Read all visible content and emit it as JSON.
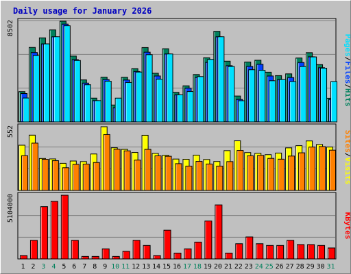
{
  "page": {
    "title": "Daily usage for January 2026"
  },
  "colors": {
    "hits": "#00805c",
    "files": "#0040ff",
    "pages": "#00e0ff",
    "visits": "#ffff00",
    "sites": "#ff8000",
    "kbytes": "#ff0000",
    "weekend_day": "#00805c",
    "weekday": "#000000"
  },
  "chart_data": [
    {
      "type": "bar",
      "name": "hits-files-pages",
      "y_max_label": "8502",
      "ylim": [
        0,
        8502
      ],
      "legend": [
        {
          "text": "Hits",
          "color_key": "hits"
        },
        {
          "text": "Files",
          "color_key": "files"
        },
        {
          "text": "Pages",
          "color_key": "pages"
        }
      ],
      "categories": [
        "1",
        "2",
        "3",
        "4",
        "5",
        "6",
        "7",
        "8",
        "9",
        "10",
        "11",
        "12",
        "13",
        "14",
        "15",
        "16",
        "17",
        "18",
        "19",
        "20",
        "21",
        "22",
        "23",
        "24",
        "25",
        "26",
        "27",
        "28",
        "29",
        "30",
        "31"
      ],
      "series": [
        {
          "name": "Hits",
          "values": [
            2560,
            6290,
            7100,
            7770,
            8502,
            5560,
            3550,
            2010,
            3780,
            1430,
            3770,
            4500,
            6280,
            4110,
            6180,
            2500,
            3050,
            4000,
            5420,
            7650,
            5130,
            2190,
            5060,
            5210,
            4200,
            3910,
            4060,
            5400,
            5850,
            4840,
            2000
          ]
        },
        {
          "name": "Files",
          "values": [
            2400,
            5860,
            6590,
            7190,
            8260,
            5260,
            3280,
            1800,
            3580,
            1200,
            3540,
            4260,
            5890,
            3880,
            5740,
            2290,
            2850,
            3760,
            5030,
            7190,
            4750,
            1900,
            4690,
            4870,
            3880,
            3570,
            3750,
            5020,
            5500,
            4580,
            1900
          ]
        },
        {
          "name": "Pages",
          "values": [
            2020,
            5600,
            6590,
            7190,
            8120,
            5190,
            3140,
            1800,
            3440,
            2010,
            3330,
            4210,
            5680,
            3610,
            5740,
            2290,
            2570,
            3830,
            5280,
            7190,
            4680,
            1790,
            4410,
            4360,
            3480,
            3580,
            3410,
            4680,
            5490,
            4540,
            3410
          ]
        }
      ]
    },
    {
      "type": "bar",
      "name": "visits-sites",
      "y_max_label": "552",
      "ylim": [
        0,
        552
      ],
      "legend": [
        {
          "text": "Visits",
          "color_key": "visits"
        },
        {
          "text": "Sites",
          "color_key": "sites"
        }
      ],
      "categories": [
        "1",
        "2",
        "3",
        "4",
        "5",
        "6",
        "7",
        "8",
        "9",
        "10",
        "11",
        "12",
        "13",
        "14",
        "15",
        "16",
        "17",
        "18",
        "19",
        "20",
        "21",
        "22",
        "23",
        "24",
        "25",
        "26",
        "27",
        "28",
        "29",
        "30",
        "31"
      ],
      "series": [
        {
          "name": "Visits",
          "values": [
            392,
            479,
            277,
            273,
            235,
            255,
            250,
            316,
            552,
            370,
            356,
            329,
            478,
            321,
            305,
            272,
            270,
            306,
            268,
            251,
            345,
            430,
            328,
            322,
            310,
            324,
            369,
            388,
            429,
            398,
            376
          ]
        },
        {
          "name": "Sites",
          "values": [
            301,
            410,
            270,
            258,
            197,
            226,
            228,
            242,
            484,
            357,
            343,
            263,
            356,
            300,
            296,
            232,
            211,
            252,
            229,
            211,
            250,
            347,
            300,
            304,
            278,
            271,
            298,
            326,
            376,
            380,
            349
          ]
        }
      ]
    },
    {
      "type": "bar",
      "name": "kbytes",
      "y_max_label": "5104000",
      "ylim": [
        0,
        5104000
      ],
      "legend": [
        {
          "text": "KBytes",
          "color_key": "kbytes"
        }
      ],
      "categories": [
        "1",
        "2",
        "3",
        "4",
        "5",
        "6",
        "7",
        "8",
        "9",
        "10",
        "11",
        "12",
        "13",
        "14",
        "15",
        "16",
        "17",
        "18",
        "19",
        "20",
        "21",
        "22",
        "23",
        "24",
        "25",
        "26",
        "27",
        "28",
        "29",
        "30",
        "31"
      ],
      "series": [
        {
          "name": "KBytes",
          "values": [
            270000,
            1490000,
            4190000,
            4610000,
            5104000,
            1490000,
            200000,
            200000,
            810000,
            200000,
            610000,
            1490000,
            1080000,
            270000,
            2300000,
            470000,
            810000,
            1350000,
            3040000,
            4330000,
            470000,
            1220000,
            1760000,
            1220000,
            1080000,
            1080000,
            1490000,
            1150000,
            1150000,
            1080000,
            880000
          ]
        }
      ]
    }
  ]
}
